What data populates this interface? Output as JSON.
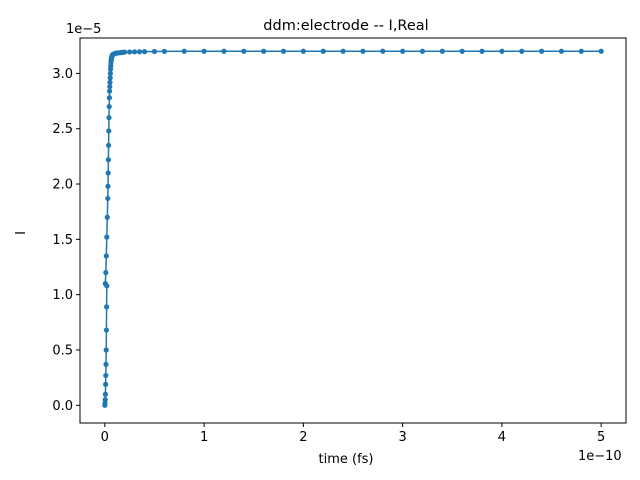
{
  "chart_data": {
    "type": "line",
    "title": "ddm:electrode -- I,Real",
    "xlabel": "time (fs)",
    "ylabel": "I",
    "x_scale_label": "1e−10",
    "y_scale_label": "1e−5",
    "x_scale": 1e-10,
    "y_scale": 1e-05,
    "xlim": [
      -0.25,
      5.25
    ],
    "ylim": [
      -0.16,
      3.32
    ],
    "x_ticks": [
      0,
      1,
      2,
      3,
      4,
      5
    ],
    "y_ticks": [
      0.0,
      0.5,
      1.0,
      1.5,
      2.0,
      2.5,
      3.0
    ],
    "x_tick_labels": [
      "0",
      "1",
      "2",
      "3",
      "4",
      "5"
    ],
    "y_tick_labels": [
      "0.0",
      "0.5",
      "1.0",
      "1.5",
      "2.0",
      "2.5",
      "3.0"
    ],
    "grid": false,
    "color": "#1f77b4",
    "series": [
      {
        "marker": "circle",
        "x": [
          0.0,
          0.002,
          0.004,
          0.006,
          0.008,
          0.01,
          0.012,
          0.014,
          0.016,
          0.018,
          0.02,
          0.005,
          0.01,
          0.015,
          0.02,
          0.025,
          0.03,
          0.032,
          0.034,
          0.036,
          0.038,
          0.04,
          0.042,
          0.044,
          0.046,
          0.048,
          0.05,
          0.052,
          0.054,
          0.056,
          0.058,
          0.06,
          0.062,
          0.064,
          0.066,
          0.068,
          0.07,
          0.072,
          0.074,
          0.076,
          0.078,
          0.08,
          0.085,
          0.09,
          0.095,
          0.1,
          0.11,
          0.12,
          0.13,
          0.14,
          0.16,
          0.18,
          0.2,
          0.25,
          0.3,
          0.35,
          0.4,
          0.5,
          0.6,
          0.8,
          1.0,
          1.2,
          1.4,
          1.6,
          1.8,
          2.0,
          2.2,
          2.4,
          2.6,
          2.8,
          3.0,
          3.2,
          3.4,
          3.6,
          3.8,
          4.0,
          4.2,
          4.4,
          4.6,
          4.8,
          5.0
        ],
        "y": [
          0.0,
          0.02,
          0.05,
          0.1,
          0.19,
          0.27,
          0.37,
          0.5,
          0.68,
          0.89,
          1.08,
          1.1,
          1.2,
          1.35,
          1.52,
          1.7,
          1.87,
          1.98,
          2.1,
          2.22,
          2.35,
          2.48,
          2.6,
          2.7,
          2.78,
          2.84,
          2.88,
          2.92,
          2.96,
          3.0,
          3.04,
          3.07,
          3.1,
          3.12,
          3.13,
          3.14,
          3.15,
          3.155,
          3.16,
          3.165,
          3.168,
          3.17,
          3.172,
          3.175,
          3.177,
          3.18,
          3.182,
          3.184,
          3.185,
          3.186,
          3.188,
          3.19,
          3.192,
          3.194,
          3.195,
          3.196,
          3.197,
          3.198,
          3.199,
          3.2,
          3.2,
          3.2,
          3.2,
          3.2,
          3.2,
          3.2,
          3.2,
          3.2,
          3.2,
          3.2,
          3.2,
          3.2,
          3.2,
          3.2,
          3.2,
          3.2,
          3.2,
          3.2,
          3.2,
          3.2,
          3.2
        ]
      }
    ]
  }
}
